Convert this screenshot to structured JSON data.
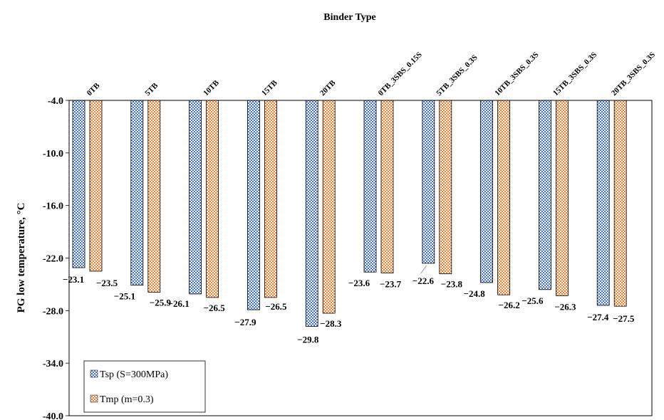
{
  "chart_data": {
    "type": "bar",
    "title": "Binder Type",
    "ylabel": "PG  low temperature, °C",
    "xlabel": "",
    "ylim": [
      -40.0,
      -4.0
    ],
    "y_ticks": [
      -4.0,
      -10.0,
      -16.0,
      -22.0,
      -28.0,
      -34.0,
      -40.0
    ],
    "y_tick_labels": [
      "-4.0",
      "-10.0",
      "-16.0",
      "-22.0",
      "-28.0",
      "-34.0",
      "-40.0"
    ],
    "categories": [
      "0TB",
      "5TB",
      "10TB",
      "15TB",
      "20TB",
      "0TB_3SBS_0.15S",
      "5TB_3SBS_0.3S",
      "10TB_3SBS_0.3S",
      "15TB_3SBS_0.3S",
      "20TB_3SBS_0.3S"
    ],
    "series": [
      {
        "name": "Tsp (S=300MPa)",
        "values": [
          -23.1,
          -25.1,
          -26.1,
          -27.9,
          -29.8,
          -23.6,
          -22.6,
          -24.8,
          -25.6,
          -27.4
        ],
        "labels": [
          "−23.1",
          "−25.1",
          "−26.1",
          "−27.9",
          "−29.8",
          "−23.6",
          "−22.6",
          "−24.8",
          "−25.6",
          "−27.4"
        ],
        "color": "#4472C4"
      },
      {
        "name": "Tmp (m=0.3)",
        "values": [
          -23.5,
          -25.9,
          -26.5,
          -26.5,
          -28.3,
          -23.7,
          -23.8,
          -26.2,
          -26.3,
          -27.5
        ],
        "labels": [
          "−23.5",
          "−25.9",
          "−26.5",
          "−26.5",
          "−28.3",
          "−23.7",
          "−23.8",
          "−26.2",
          "−26.3",
          "−27.5"
        ],
        "color": "#ED7D31"
      }
    ],
    "grid": false,
    "x_axis_position": "top",
    "legend_position": "bottom-left"
  }
}
